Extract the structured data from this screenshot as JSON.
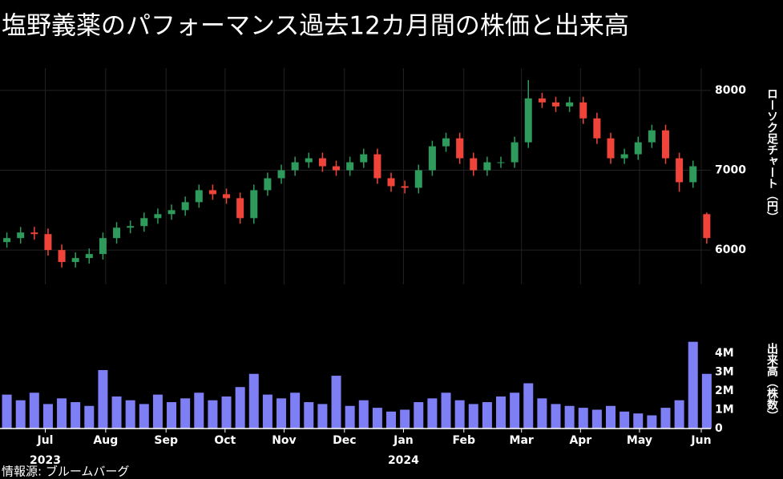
{
  "title": "塩野義薬のパフォーマンス過去12カ月間の株価と出来高",
  "source": "情報源: ブルームバーグ",
  "chart_data": [
    {
      "type": "candlestick",
      "y_label": "ローソク足チャート（円）",
      "xlim": [
        -0.5,
        51.3
      ],
      "ylim": [
        5570,
        8280
      ],
      "yticks": [
        6000,
        7000,
        8000
      ],
      "grid": true,
      "up_color": "#2e9a5c",
      "down_color": "#f0443a",
      "open": [
        6100,
        6150,
        6220,
        6200,
        6000,
        5850,
        5900,
        5950,
        6150,
        6280,
        6300,
        6400,
        6450,
        6500,
        6600,
        6750,
        6700,
        6650,
        6400,
        6750,
        6900,
        7000,
        7100,
        7150,
        7050,
        7000,
        7100,
        7200,
        6900,
        6800,
        6780,
        7000,
        7300,
        7400,
        7150,
        7000,
        7100,
        7100,
        7350,
        7900,
        7850,
        7800,
        7850,
        7650,
        7400,
        7150,
        7200,
        7350,
        7500,
        7150,
        6850,
        6450
      ],
      "high": [
        6220,
        6290,
        6290,
        6270,
        6070,
        5970,
        6020,
        6220,
        6350,
        6370,
        6470,
        6520,
        6570,
        6670,
        6820,
        6820,
        6770,
        6720,
        6820,
        6970,
        7070,
        7170,
        7220,
        7220,
        7120,
        7170,
        7270,
        7270,
        6970,
        6870,
        7070,
        7370,
        7470,
        7470,
        7220,
        7170,
        7170,
        7420,
        8130,
        7970,
        7920,
        7920,
        7920,
        7720,
        7470,
        7270,
        7420,
        7570,
        7570,
        7220,
        7120,
        6470
      ],
      "low": [
        6030,
        6080,
        6130,
        5930,
        5780,
        5780,
        5830,
        5880,
        6080,
        6210,
        6230,
        6330,
        6380,
        6430,
        6530,
        6630,
        6580,
        6330,
        6330,
        6680,
        6830,
        6930,
        7030,
        6980,
        6930,
        6930,
        7030,
        6830,
        6730,
        6710,
        6710,
        6930,
        7230,
        7080,
        6930,
        6930,
        7030,
        7030,
        7280,
        7780,
        7730,
        7730,
        7580,
        7330,
        7080,
        7080,
        7130,
        7280,
        7080,
        6730,
        6780,
        6080
      ],
      "close": [
        6150,
        6220,
        6200,
        6000,
        5850,
        5900,
        5950,
        6150,
        6280,
        6300,
        6400,
        6450,
        6500,
        6600,
        6750,
        6700,
        6650,
        6400,
        6750,
        6900,
        7000,
        7100,
        7150,
        7050,
        7000,
        7100,
        7200,
        6900,
        6800,
        6780,
        7000,
        7300,
        7400,
        7150,
        7000,
        7100,
        7100,
        7350,
        7900,
        7850,
        7800,
        7850,
        7650,
        7400,
        7150,
        7200,
        7350,
        7500,
        7150,
        6850,
        7050,
        6150
      ]
    },
    {
      "type": "bar",
      "y_label": "出来高（株数）",
      "xlim": [
        -0.5,
        51.3
      ],
      "ylim": [
        0,
        4800000
      ],
      "color": "#7f7ff5",
      "yticks": [
        0,
        {
          "value": 1000000,
          "label": "1M"
        },
        {
          "value": 2000000,
          "label": "2M"
        },
        {
          "value": 3000000,
          "label": "3M"
        },
        {
          "value": 4000000,
          "label": "4M"
        }
      ],
      "xticks": [
        {
          "value": 2.8,
          "label": "Jul"
        },
        {
          "value": 7.2,
          "label": "Aug"
        },
        {
          "value": 11.6,
          "label": "Sep"
        },
        {
          "value": 15.9,
          "label": "Oct"
        },
        {
          "value": 20.2,
          "label": "Nov"
        },
        {
          "value": 24.6,
          "label": "Dec"
        },
        {
          "value": 28.9,
          "label": "Jan"
        },
        {
          "value": 33.3,
          "label": "Feb"
        },
        {
          "value": 37.5,
          "label": "Mar"
        },
        {
          "value": 41.8,
          "label": "Apr"
        },
        {
          "value": 46.1,
          "label": "May"
        },
        {
          "value": 50.6,
          "label": "Jun"
        }
      ],
      "year_ticks": [
        {
          "value": 2.8,
          "label": "2023"
        },
        {
          "value": 28.9,
          "label": "2024"
        }
      ],
      "values": [
        1800000,
        1500000,
        1900000,
        1300000,
        1600000,
        1400000,
        1200000,
        3100000,
        1700000,
        1500000,
        1300000,
        1800000,
        1400000,
        1600000,
        1900000,
        1500000,
        1700000,
        2200000,
        2900000,
        1800000,
        1600000,
        1900000,
        1400000,
        1300000,
        2800000,
        1200000,
        1500000,
        1100000,
        900000,
        1000000,
        1400000,
        1600000,
        1900000,
        1500000,
        1300000,
        1400000,
        1700000,
        1900000,
        2400000,
        1600000,
        1300000,
        1200000,
        1100000,
        1000000,
        1200000,
        900000,
        800000,
        700000,
        1100000,
        1500000,
        4600000,
        2900000
      ]
    }
  ]
}
